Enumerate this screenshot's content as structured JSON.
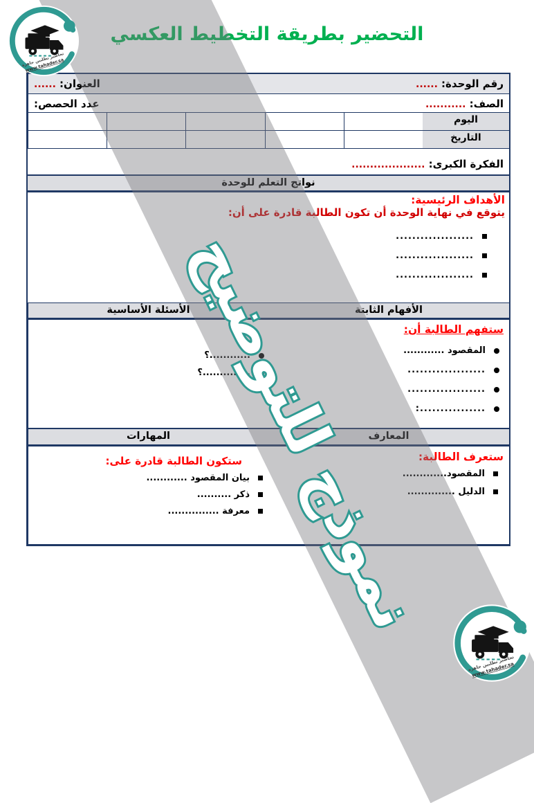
{
  "title": "التحضير بطريقة التخطيط العكسي",
  "logo": {
    "tagline": "تحاضير تطلبين جاهزة",
    "url": "www.tahader.sa"
  },
  "watermark": "نموذج للتوضيح",
  "info": {
    "unit_label": "رقم الوحدة:",
    "unit_value": "......",
    "topic_label": "العنوان:",
    "topic_value": "......",
    "grade_label": "الصف:",
    "grade_value": "...........",
    "periods_label": "عدد الحصص:",
    "day_label": "اليوم",
    "date_label": "التاريخ",
    "big_idea_label": "الفكرة الكبرى:",
    "big_idea_value": "...................."
  },
  "outcomes_header": "نواتج التعلم للوحدة",
  "objectives": {
    "title": "الأهداف الرئيسية:",
    "intro": "يتوقع في نهاية الوحدة أن تكون الطالبة قادرة على أن:",
    "items": [
      "...................",
      "...................",
      "..................."
    ]
  },
  "understandings": {
    "header": "الأفهام الثابتة",
    "title": "ستفهم الطالبة أن:",
    "items": [
      "المقصود ............",
      "...................",
      "...................",
      "................:"
    ]
  },
  "questions": {
    "header": "الأسئلة الأساسية",
    "items": [
      "............؟",
      "..............؟"
    ]
  },
  "knowledge": {
    "header": "المعارف",
    "title": "ستعرف الطالبة:",
    "items": [
      "المقصود.............",
      "الدليل .............."
    ]
  },
  "skills": {
    "header": "المهارات",
    "title": "ستكون الطالبة قادرة على:",
    "items": [
      "بيان المقصود ............",
      "ذكر ..........",
      "معرفة ..............."
    ]
  },
  "colors": {
    "title_green": "#00b050",
    "heading_red": "#ff0000",
    "dots_red": "#c00000",
    "watermark_teal": "#2f9a92",
    "border_navy": "#1f3864",
    "band_gray": "#c7c7c9",
    "header_fill": "#dcdde1"
  }
}
